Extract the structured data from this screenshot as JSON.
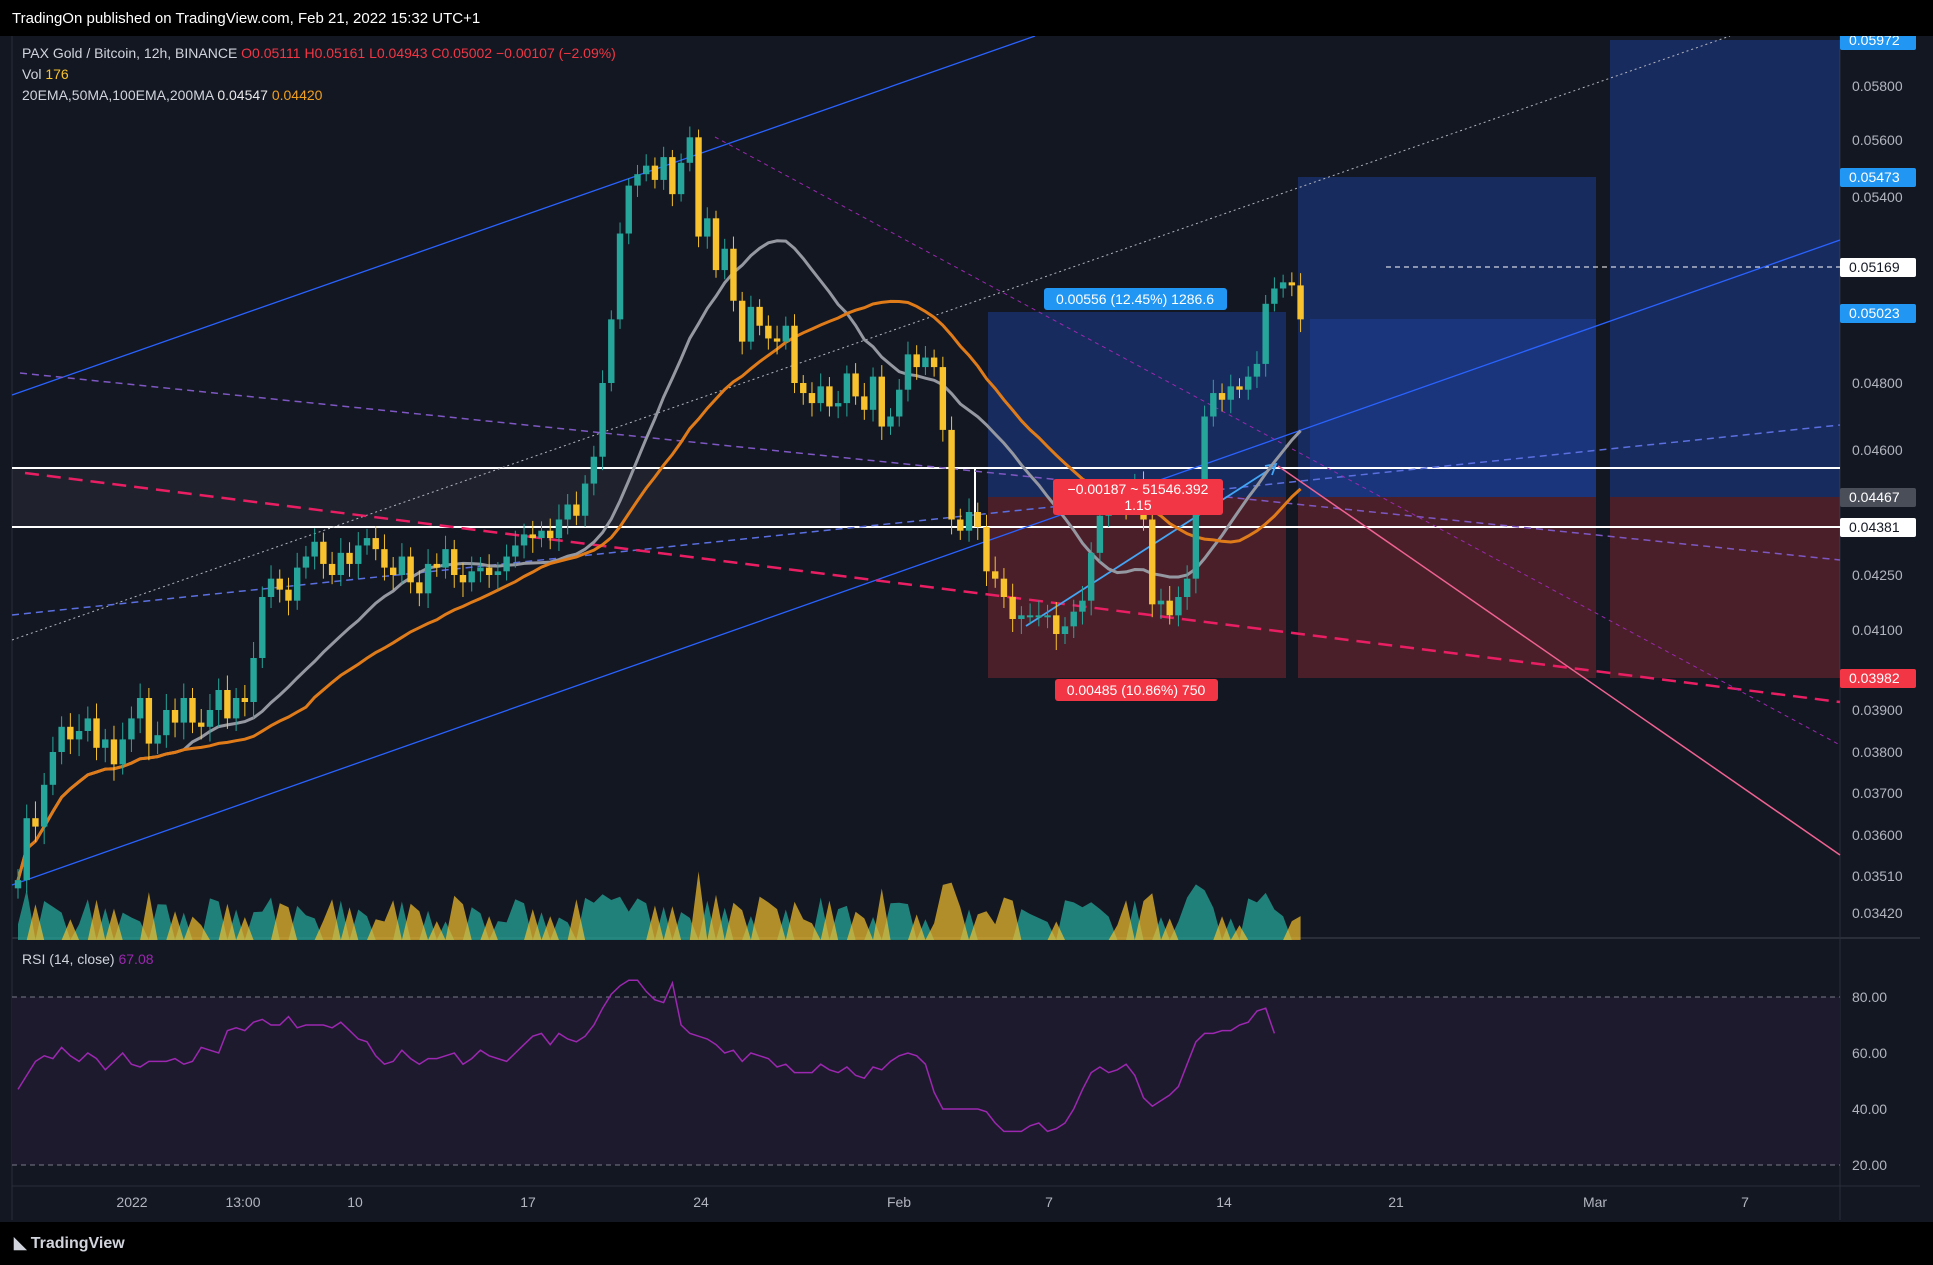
{
  "header": {
    "published_text": "TradingOn published on TradingView.com, Feb 21, 2022 15:32 UTC+1"
  },
  "legend": {
    "symbol": "PAX Gold / Bitcoin, 12h, BINANCE",
    "ohlc": "O0.05111 H0.05161 L0.04943 C0.05002 −0.00107 (−2.09%)",
    "vol_label": "Vol",
    "vol_value": "176",
    "ma_label": "20EMA,50MA,100EMA,200MA",
    "ma_value_1": "0.04547",
    "ma_value_2": "0.04420",
    "rsi_label": "RSI (14, close)",
    "rsi_value": "67.08"
  },
  "price_axis": {
    "ticks": [
      "0.05800",
      "0.05600",
      "0.05400",
      "0.04800",
      "0.04600",
      "0.04250",
      "0.04100",
      "0.03900",
      "0.03800",
      "0.03700",
      "0.03600",
      "0.03510",
      "0.03420"
    ],
    "tags": [
      {
        "label": "0.05972",
        "color": "#2196f3"
      },
      {
        "label": "0.05473",
        "color": "#2196f3"
      },
      {
        "label": "0.05169",
        "color": "#ffffff"
      },
      {
        "label": "0.05023",
        "color": "#2196f3"
      },
      {
        "label": "0.04467",
        "color": "#4a4e59"
      },
      {
        "label": "0.04381",
        "color": "#ffffff"
      },
      {
        "label": "0.03982",
        "color": "#f23645"
      }
    ]
  },
  "rsi_axis": {
    "ticks": [
      "80.00",
      "60.00",
      "40.00",
      "20.00"
    ]
  },
  "time_axis": {
    "ticks": [
      "2022",
      "13:00",
      "10",
      "17",
      "24",
      "Feb",
      "7",
      "14",
      "21",
      "Mar",
      "7"
    ]
  },
  "annotations": {
    "long_label": "0.00556 (12.45%) 1286.6",
    "short_label": "0.00485 (10.86%) 750",
    "measure_label_1": "−0.00187 ~ 51546.392",
    "measure_label_2": "1.15"
  },
  "colors": {
    "up": "#26a69a",
    "down": "#f7c22e",
    "rsi": "#9c27b0",
    "ma_gray": "#9598a1",
    "ma_orange": "#e07b1a"
  },
  "footer": {
    "brand": "TradingView"
  },
  "chart_data": {
    "type": "candlestick",
    "title": "PAX Gold / Bitcoin, 12h, BINANCE",
    "x_range": [
      "2021-12-28",
      "2022-03-09"
    ],
    "y_range": [
      0.0336,
      0.06
    ],
    "rsi_range": [
      20,
      80
    ],
    "close": [
      0.035,
      0.0364,
      0.0362,
      0.0372,
      0.038,
      0.0386,
      0.0383,
      0.0385,
      0.0388,
      0.0381,
      0.0383,
      0.0377,
      0.0383,
      0.0388,
      0.0393,
      0.0382,
      0.0384,
      0.039,
      0.0387,
      0.0393,
      0.0387,
      0.0386,
      0.039,
      0.0395,
      0.0388,
      0.0393,
      0.0392,
      0.0403,
      0.0419,
      0.0424,
      0.0421,
      0.0418,
      0.0427,
      0.043,
      0.0434,
      0.0428,
      0.0425,
      0.0431,
      0.0428,
      0.0433,
      0.0435,
      0.0432,
      0.0427,
      0.0425,
      0.043,
      0.0423,
      0.042,
      0.0428,
      0.0427,
      0.0432,
      0.0425,
      0.0423,
      0.0426,
      0.0427,
      0.0425,
      0.0426,
      0.043,
      0.0433,
      0.0436,
      0.0435,
      0.0437,
      0.0435,
      0.044,
      0.0444,
      0.0441,
      0.045,
      0.0458,
      0.048,
      0.05,
      0.0528,
      0.0544,
      0.0548,
      0.0551,
      0.0546,
      0.0554,
      0.0541,
      0.0552,
      0.0561,
      0.0527,
      0.0533,
      0.0516,
      0.0523,
      0.0506,
      0.0493,
      0.0504,
      0.0498,
      0.0494,
      0.0493,
      0.0498,
      0.048,
      0.0477,
      0.0474,
      0.0479,
      0.0473,
      0.0474,
      0.0483,
      0.0476,
      0.0472,
      0.0482,
      0.0467,
      0.047,
      0.0478,
      0.0489,
      0.0485,
      0.0488,
      0.0485,
      0.0466,
      0.044,
      0.0437,
      0.0442,
      0.0438,
      0.0426,
      0.0424,
      0.0419,
      0.0413,
      0.0414,
      0.0414,
      0.0414,
      0.0414,
      0.0409,
      0.0411,
      0.0415,
      0.0418,
      0.0431,
      0.0441,
      0.0447,
      0.0446,
      0.0444,
      0.045,
      0.044,
      0.0417,
      0.0418,
      0.0414,
      0.0419,
      0.0424,
      0.0448,
      0.047,
      0.0477,
      0.0475,
      0.0479,
      0.0478,
      0.0482,
      0.0486,
      0.0505,
      0.051,
      0.0512,
      0.0511,
      0.05
    ],
    "rsi": [
      47,
      52,
      57,
      59,
      58,
      62,
      59,
      57,
      60,
      58,
      54,
      57,
      60,
      56,
      55,
      57,
      57,
      57,
      58,
      56,
      57,
      62,
      61,
      60,
      68,
      69,
      68,
      71,
      72,
      70,
      70,
      73,
      69,
      70,
      70,
      70,
      69,
      71,
      68,
      65,
      64,
      59,
      56,
      57,
      61,
      58,
      56,
      58,
      58,
      59,
      60,
      56,
      58,
      61,
      59,
      58,
      57,
      60,
      63,
      66,
      67,
      63,
      67,
      65,
      64,
      66,
      70,
      76,
      81,
      84,
      86,
      86,
      82,
      79,
      78,
      85,
      70,
      67,
      66,
      65,
      63,
      60,
      61,
      57,
      60,
      59,
      58,
      55,
      56,
      53,
      53,
      53,
      56,
      54,
      53,
      55,
      52,
      51,
      55,
      54,
      57,
      59,
      60,
      59,
      56,
      46,
      40,
      40,
      40,
      40,
      40,
      39,
      35,
      32,
      32,
      32,
      34,
      35,
      32,
      33,
      35,
      40,
      47,
      53,
      55,
      53,
      54,
      56,
      52,
      44,
      41,
      43,
      45,
      48,
      56,
      64,
      67,
      67,
      68,
      68,
      70,
      71,
      75,
      76,
      67
    ]
  }
}
